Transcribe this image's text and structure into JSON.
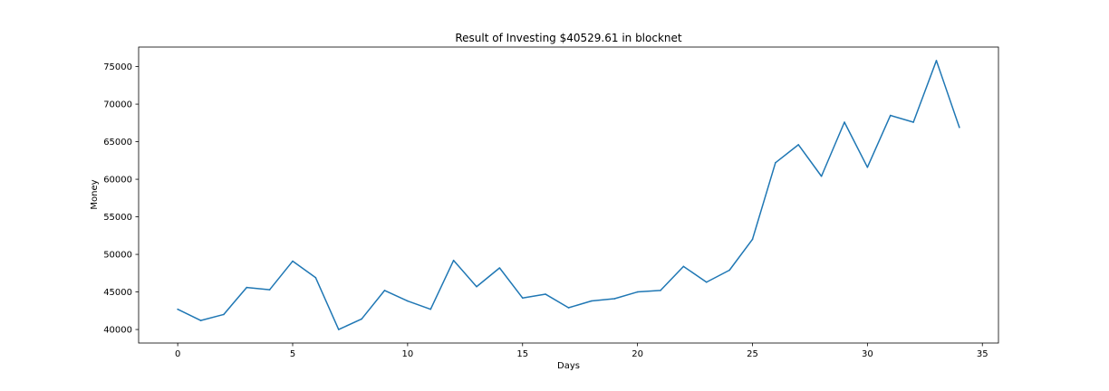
{
  "chart_data": {
    "type": "line",
    "title": "Result of Investing $40529.61 in blocknet",
    "xlabel": "Days",
    "ylabel": "Money",
    "xlim": [
      -1.7,
      35.7
    ],
    "ylim": [
      38200,
      77600
    ],
    "xticks": [
      0,
      5,
      10,
      15,
      20,
      25,
      30,
      35
    ],
    "yticks": [
      40000,
      45000,
      50000,
      55000,
      60000,
      65000,
      70000,
      75000
    ],
    "grid": false,
    "series": [
      {
        "color": "#1f77b4",
        "x": [
          0,
          1,
          2,
          3,
          4,
          5,
          6,
          7,
          8,
          9,
          10,
          11,
          12,
          13,
          14,
          15,
          16,
          17,
          18,
          19,
          20,
          21,
          22,
          23,
          24,
          25,
          26,
          27,
          28,
          29,
          30,
          31,
          32,
          33,
          34
        ],
        "y": [
          42700,
          41200,
          42000,
          45600,
          45300,
          49100,
          46900,
          40000,
          41400,
          45200,
          43800,
          42700,
          49200,
          45700,
          48200,
          44200,
          44700,
          42900,
          43800,
          44100,
          45000,
          45200,
          48400,
          46300,
          47900,
          52000,
          62200,
          64600,
          60400,
          67600,
          61600,
          68500,
          67600,
          75800,
          66900
        ]
      }
    ]
  }
}
